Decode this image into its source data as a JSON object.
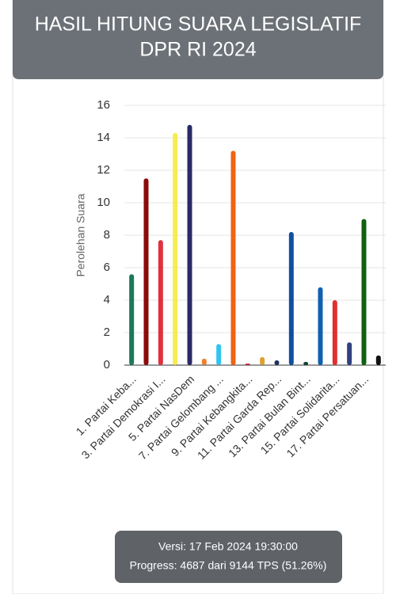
{
  "header": {
    "title_lines": [
      "HASIL HITUNG SUARA LEGISLATIF",
      "DPR RI 2024"
    ]
  },
  "chart_data": {
    "type": "bar",
    "y_label": "Perolehan Suara",
    "categories": [
      "1. Partai Keba...",
      null,
      "3. Partai Demokrasi I...",
      null,
      "5. Partai NasDem",
      null,
      "7. Partai Gelombang ...",
      null,
      "9. Partai Kebangkita...",
      null,
      "11. Partai Garda Rep...",
      null,
      "13. Partai Bulan Bint...",
      null,
      "15. Partai Solidarita...",
      null,
      "17. Partai Persatuan...",
      null
    ],
    "values": [
      5.6,
      11.5,
      7.7,
      14.3,
      14.8,
      0.4,
      1.3,
      13.2,
      0.1,
      0.5,
      0.3,
      8.2,
      0.2,
      4.8,
      4.0,
      1.4,
      9.0,
      0.6
    ],
    "colors": [
      "#1a7a5a",
      "#8b0a0a",
      "#e03040",
      "#f7ec50",
      "#2a2a68",
      "#f08030",
      "#30c4f0",
      "#f06412",
      "#c02030",
      "#e0a030",
      "#203060",
      "#1050a0",
      "#104030",
      "#1060b0",
      "#e03030",
      "#304080",
      "#106010",
      "#101010"
    ],
    "ylim": [
      0,
      16
    ],
    "yticks": [
      0,
      2,
      4,
      6,
      8,
      10,
      12,
      14,
      16
    ],
    "grid": true
  },
  "footer": {
    "version": "Versi: 17 Feb 2024 19:30:00",
    "progress": "Progress: 4687 dari 9144 TPS (51.26%)"
  }
}
